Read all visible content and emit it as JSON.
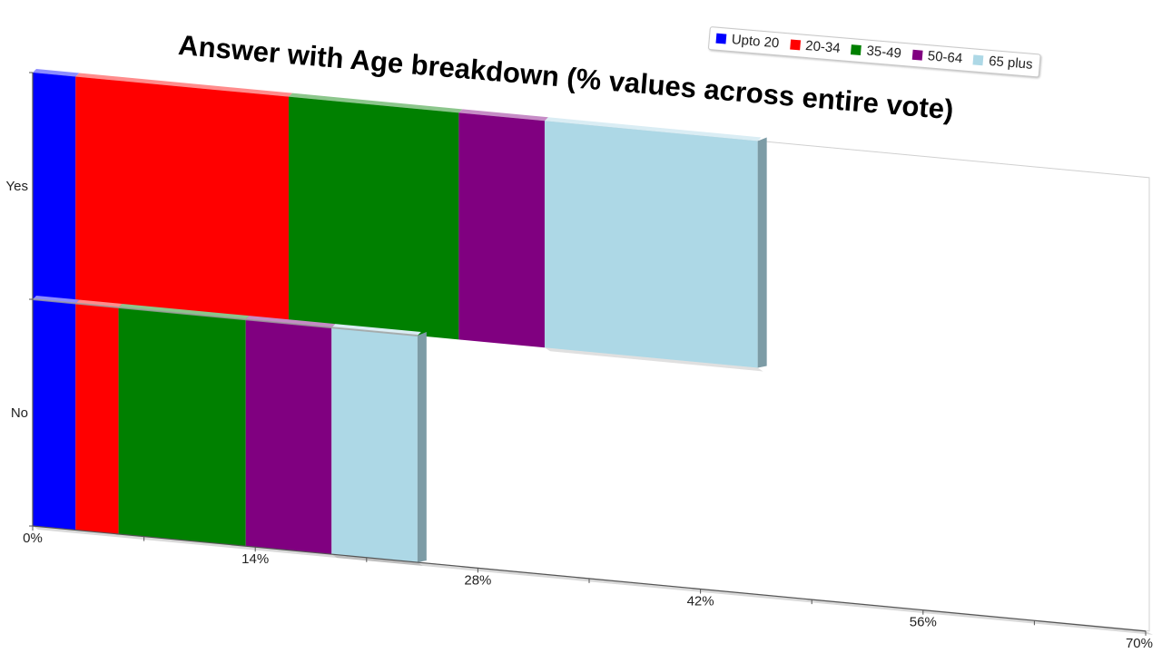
{
  "chart_data": {
    "type": "bar",
    "orientation": "horizontal",
    "stacked": true,
    "title": "Answer with Age breakdown (% values across entire vote)",
    "categories": [
      "Yes",
      "No"
    ],
    "series": [
      {
        "name": "Upto 20",
        "color": "#0000ff",
        "values": [
          2.7,
          2.7
        ]
      },
      {
        "name": "20-34",
        "color": "#ff0000",
        "values": [
          13.4,
          2.7
        ]
      },
      {
        "name": "35-49",
        "color": "#008000",
        "values": [
          10.7,
          8.0
        ]
      },
      {
        "name": "50-64",
        "color": "#800080",
        "values": [
          5.4,
          5.4
        ]
      },
      {
        "name": "65 plus",
        "color": "#add8e6",
        "values": [
          13.4,
          5.4
        ]
      }
    ],
    "xlim": [
      0,
      70
    ],
    "xticks": [
      "0%",
      "14%",
      "28%",
      "42%",
      "56%",
      "70%"
    ],
    "legend_position": "top-right",
    "grid": false
  }
}
